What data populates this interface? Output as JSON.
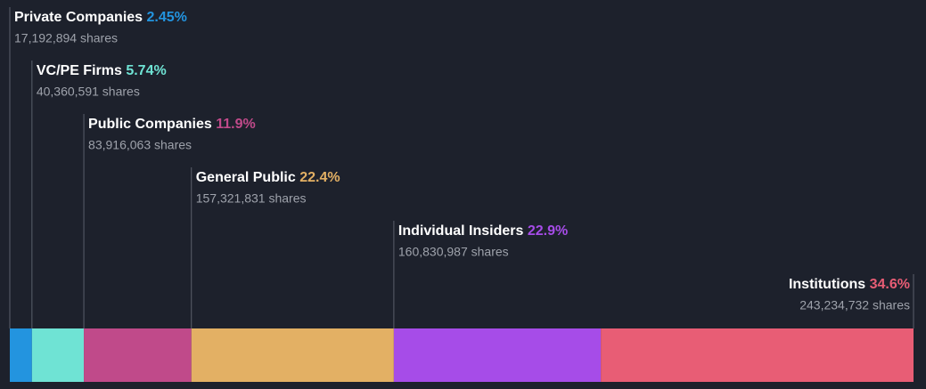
{
  "chart_data": {
    "type": "stacked-bar",
    "categories": [
      "Private Companies",
      "VC/PE Firms",
      "Public Companies",
      "General Public",
      "Individual Insiders",
      "Institutions"
    ],
    "values": [
      2.45,
      5.74,
      11.9,
      22.4,
      22.9,
      34.6
    ],
    "value_labels": [
      "2.45%",
      "5.74%",
      "11.9%",
      "22.4%",
      "22.9%",
      "34.6%"
    ],
    "share_labels": [
      "17,192,894 shares",
      "40,360,591 shares",
      "83,916,063 shares",
      "157,321,831 shares",
      "160,830,987 shares",
      "243,234,732 shares"
    ],
    "colors": [
      "#2394df",
      "#6fe3d4",
      "#c04a8a",
      "#e3b064",
      "#a64ce8",
      "#e85d75"
    ]
  }
}
